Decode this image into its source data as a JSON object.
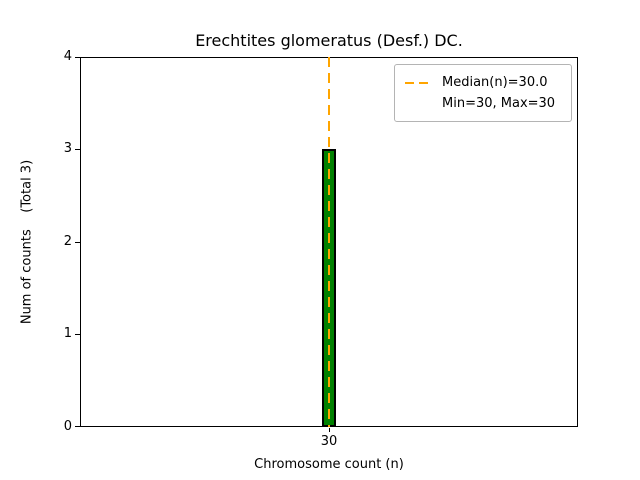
{
  "chart_data": {
    "type": "bar",
    "title": "Erechtites glomeratus (Desf.) DC.",
    "xlabel": "Chromosome count (n)",
    "ylabel": "Num of counts    (Total 3)",
    "categories": [
      "30"
    ],
    "values": [
      3
    ],
    "total_counts": 3,
    "ylim": [
      0,
      4
    ],
    "yticks": [
      "0",
      "1",
      "2",
      "3",
      "4"
    ],
    "xticks": [
      "30"
    ],
    "bar_color": "#008000",
    "bar_edge_color": "#000000",
    "median_line": {
      "value": 30.0,
      "color": "#FFA500",
      "style": "dashed",
      "orientation": "vertical"
    },
    "legend": {
      "position": "upper right",
      "entries": [
        {
          "label": "Median(n)=30.0",
          "symbol": "dashed-line"
        },
        {
          "label": "Min=30, Max=30",
          "symbol": "none"
        }
      ]
    },
    "grid": false
  }
}
